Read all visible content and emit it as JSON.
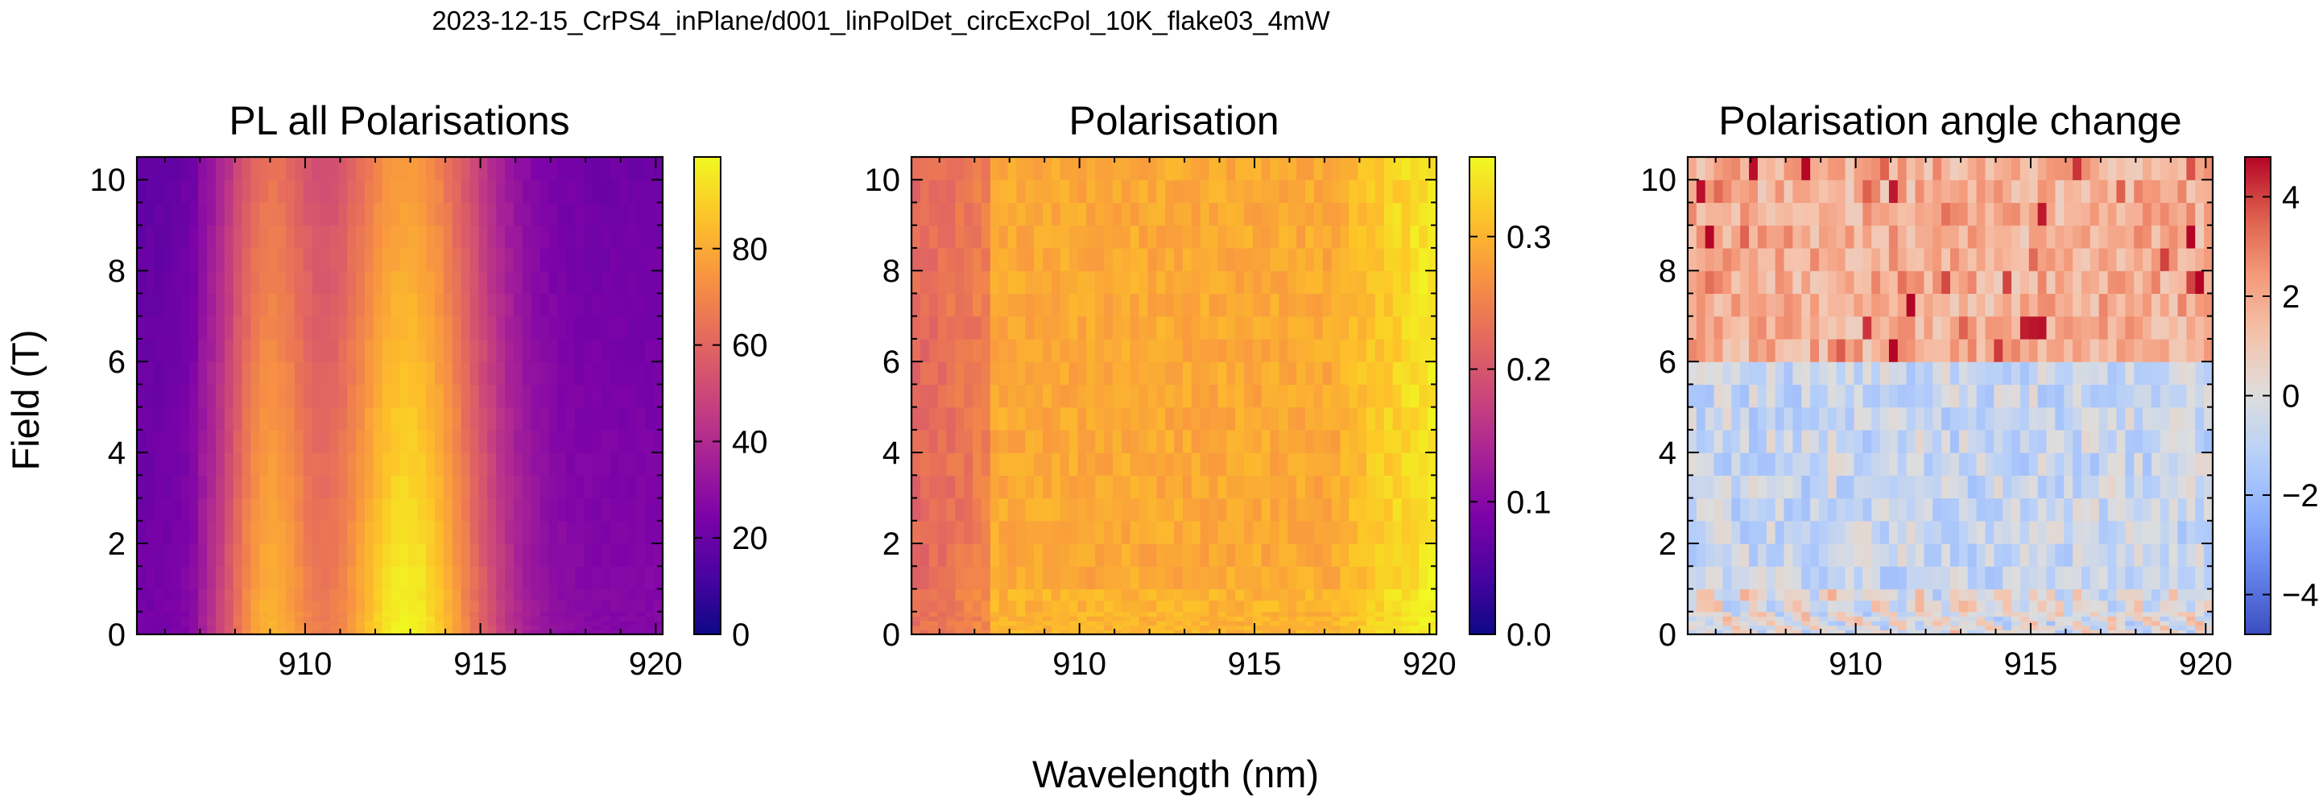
{
  "figure": {
    "suptitle": "2023-12-15_CrPS4_inPlane/d001_linPolDet_circExcPol_10K_flake03_4mW",
    "xlabel": "Wavelength (nm)",
    "ylabel": "Field (T)"
  },
  "chart_data": [
    {
      "type": "heatmap",
      "title": "PL all Polarisations",
      "xlim": [
        905.2,
        920.2
      ],
      "ylim": [
        0,
        10.5
      ],
      "x_ticks": [
        910,
        915,
        920
      ],
      "y_ticks": [
        0,
        2,
        4,
        6,
        8,
        10
      ],
      "colormap": "plasma",
      "colorbar": {
        "range": [
          0,
          99
        ],
        "ticks": [
          0,
          20,
          40,
          60,
          80
        ]
      },
      "x_bins": 60,
      "field_rows": [
        0,
        0.1,
        0.2,
        0.3,
        0.4,
        0.5,
        0.75,
        1,
        1.5,
        2,
        2.5,
        3,
        3.5,
        4,
        4.5,
        5,
        5.5,
        6,
        6.5,
        7,
        7.5,
        8,
        8.5,
        9,
        9.5,
        10,
        10.5
      ],
      "profile_peaks": [
        {
          "center_nm": 908.9,
          "width_nm": 1.0,
          "amplitude": 68
        },
        {
          "center_nm": 912.9,
          "width_nm": 1.7,
          "amplitude": 95
        }
      ],
      "baseline": 27,
      "field_trend": "peak intensity decreases from ~99 at 0 T to ~78 at 10 T"
    },
    {
      "type": "heatmap",
      "title": "Polarisation",
      "xlim": [
        905.2,
        920.2
      ],
      "ylim": [
        0,
        10.5
      ],
      "x_ticks": [
        910,
        915,
        920
      ],
      "y_ticks": [
        0,
        2,
        4,
        6,
        8,
        10
      ],
      "colormap": "plasma",
      "colorbar": {
        "range": [
          0,
          0.36
        ],
        "ticks": [
          0.0,
          0.1,
          0.2,
          0.3
        ],
        "tick_labels": [
          "0.0",
          "0.1",
          "0.2",
          "0.3"
        ]
      },
      "x_bins": 60,
      "field_rows": [
        0,
        0.1,
        0.2,
        0.3,
        0.4,
        0.5,
        0.75,
        1,
        1.5,
        2,
        2.5,
        3,
        3.5,
        4,
        4.5,
        5,
        5.5,
        6,
        6.5,
        7,
        7.5,
        8,
        8.5,
        9,
        9.5,
        10,
        10.5
      ],
      "value_range": [
        0.22,
        0.36
      ],
      "field_trend": "low (~0.23) near 905 nm, ~0.29 mid-range, rising to ~0.35 near 920 nm"
    },
    {
      "type": "heatmap",
      "title": "Polarisation angle change",
      "xlim": [
        905.2,
        920.2
      ],
      "ylim": [
        0,
        10.5
      ],
      "x_ticks": [
        910,
        915,
        920
      ],
      "y_ticks": [
        0,
        2,
        4,
        6,
        8,
        10
      ],
      "colormap": "coolwarm",
      "colorbar": {
        "range": [
          -4.8,
          4.8
        ],
        "ticks": [
          -4,
          -2,
          0,
          2,
          4
        ],
        "tick_labels": [
          "−4",
          "−2",
          "0",
          "2",
          "4"
        ]
      },
      "x_bins": 60,
      "field_rows": [
        0,
        0.1,
        0.2,
        0.3,
        0.4,
        0.5,
        0.75,
        1,
        1.5,
        2,
        2.5,
        3,
        3.5,
        4,
        4.5,
        5,
        5.5,
        6,
        6.5,
        7,
        7.5,
        8,
        8.5,
        9,
        9.5,
        10,
        10.5
      ],
      "field_trend": "near 0 below 1 T, slightly negative (~-0.7) from 1 T to 6 T, positive (~1.8, up to ~4.6) from 6 T to 10 T"
    }
  ],
  "colors": {
    "background": "#ffffff",
    "axis": "#000000"
  }
}
